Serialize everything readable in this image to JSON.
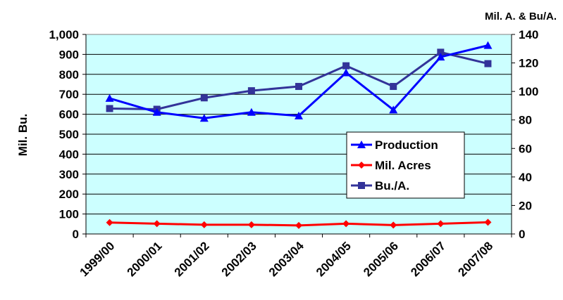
{
  "chart_data": {
    "type": "line",
    "categories": [
      "1999/00",
      "2000/01",
      "2001/02",
      "2002/03",
      "2003/04",
      "2004/05",
      "2005/06",
      "2006/07",
      "2007/08"
    ],
    "ylabel": "Mil. Bu.",
    "y2label": "Mil. A. & Bu/A.",
    "ylim": [
      0,
      1000
    ],
    "y2lim": [
      0,
      140
    ],
    "yticks": [
      "0",
      "100",
      "200",
      "300",
      "400",
      "500",
      "600",
      "700",
      "800",
      "900",
      "1,000"
    ],
    "y2ticks": [
      "0",
      "20",
      "40",
      "60",
      "80",
      "100",
      "120",
      "140"
    ],
    "grid": true,
    "legend_position": "center-right",
    "plot_background": "#ccffff",
    "series": [
      {
        "name": "Production",
        "axis": "left",
        "color": "#0000ff",
        "marker": "triangle",
        "values": [
          680,
          610,
          580,
          610,
          592,
          808,
          622,
          887,
          945
        ]
      },
      {
        "name": "Mil. Acres",
        "axis": "right",
        "color": "#ff0000",
        "marker": "diamond",
        "values": [
          8,
          7.2,
          6.5,
          6.5,
          6.0,
          7.2,
          6.2,
          7.2,
          8.2
        ]
      },
      {
        "name": "Bu./A.",
        "axis": "right",
        "color": "#333399",
        "marker": "square",
        "values": [
          88,
          87.5,
          95.5,
          100.5,
          103.5,
          118,
          103.5,
          127.5,
          119.5
        ]
      }
    ]
  }
}
